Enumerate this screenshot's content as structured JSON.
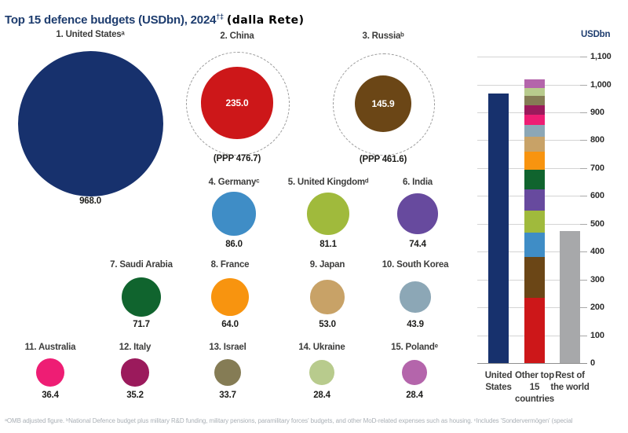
{
  "title": {
    "main": "Top 15 defence budgets (USDbn), 2024",
    "superscript": "†‡",
    "annotation": "(dalla Rete)"
  },
  "unit_label": "USDbn",
  "footnote": "ᵃOMB adjusted figure. ᵇNational Defence budget plus military R&D funding, military pensions, paramilitary forces' budgets, and other MoD-related expenses such as housing. ᶜIncludes 'Sondervermögen' (special",
  "colors": {
    "title_navy": "#1d3c6e",
    "label_gray": "#3c3c3b",
    "value_black": "#1d1d1b",
    "gridline": "#d4d4d4",
    "dashed_ring": "#9a9a9a",
    "rest_of_world_gray": "#a7a8aa"
  },
  "chart_data": [
    {
      "type": "bubble",
      "title": "Top 15 defence budgets (USDbn), 2024",
      "unit": "USDbn",
      "points": [
        {
          "rank": 1,
          "label": "1. United Statesᵃ",
          "name": "United States",
          "value": 968.0,
          "value_label": "968.0",
          "color": "#17316d"
        },
        {
          "rank": 2,
          "label": "2. China",
          "name": "China",
          "value": 235.0,
          "value_label": "235.0",
          "color": "#cd1719",
          "ppp": 476.7,
          "ppp_label": "(PPP 476.7)",
          "value_inside": true
        },
        {
          "rank": 3,
          "label": "3. Russiaᵇ",
          "name": "Russia",
          "value": 145.9,
          "value_label": "145.9",
          "color": "#6b4616",
          "ppp": 461.6,
          "ppp_label": "(PPP 461.6)",
          "value_inside": true
        },
        {
          "rank": 4,
          "label": "4. Germanyᶜ",
          "name": "Germany",
          "value": 86.0,
          "value_label": "86.0",
          "color": "#3f8dc6"
        },
        {
          "rank": 5,
          "label": "5. United Kingdomᵈ",
          "name": "United Kingdom",
          "value": 81.1,
          "value_label": "81.1",
          "color": "#a0ba3c"
        },
        {
          "rank": 6,
          "label": "6. India",
          "name": "India",
          "value": 74.4,
          "value_label": "74.4",
          "color": "#674a9e"
        },
        {
          "rank": 7,
          "label": "7. Saudi Arabia",
          "name": "Saudi Arabia",
          "value": 71.7,
          "value_label": "71.7",
          "color": "#10642e"
        },
        {
          "rank": 8,
          "label": "8. France",
          "name": "France",
          "value": 64.0,
          "value_label": "64.0",
          "color": "#f8940f"
        },
        {
          "rank": 9,
          "label": "9. Japan",
          "name": "Japan",
          "value": 53.0,
          "value_label": "53.0",
          "color": "#c8a267"
        },
        {
          "rank": 10,
          "label": "10. South Korea",
          "name": "South Korea",
          "value": 43.9,
          "value_label": "43.9",
          "color": "#8ca7b6"
        },
        {
          "rank": 11,
          "label": "11. Australia",
          "name": "Australia",
          "value": 36.4,
          "value_label": "36.4",
          "color": "#ee1d74"
        },
        {
          "rank": 12,
          "label": "12. Italy",
          "name": "Italy",
          "value": 35.2,
          "value_label": "35.2",
          "color": "#9b1a5c"
        },
        {
          "rank": 13,
          "label": "13. Israel",
          "name": "Israel",
          "value": 33.7,
          "value_label": "33.7",
          "color": "#857c55"
        },
        {
          "rank": 14,
          "label": "14. Ukraine",
          "name": "Ukraine",
          "value": 28.4,
          "value_label": "28.4",
          "color": "#b8cb8d"
        },
        {
          "rank": 15,
          "label": "15. Polandᵉ",
          "name": "Poland",
          "value": 28.4,
          "value_label": "28.4",
          "color": "#b465ab"
        }
      ]
    },
    {
      "type": "bar",
      "ylabel": "USDbn",
      "ylim": [
        0,
        1100
      ],
      "yticks": [
        "0",
        "100",
        "200",
        "300",
        "400",
        "500",
        "600",
        "700",
        "800",
        "900",
        "1,000",
        "1,100"
      ],
      "grid": true,
      "bars": [
        {
          "category": "United States",
          "total": 968.0,
          "segments": [
            {
              "name": "United States",
              "value": 968.0,
              "color": "#17316d"
            }
          ]
        },
        {
          "category": "Other top 15 countries",
          "total": 1017.1,
          "segments": [
            {
              "name": "China",
              "value": 235.0,
              "color": "#cd1719"
            },
            {
              "name": "Russia",
              "value": 145.9,
              "color": "#6b4616"
            },
            {
              "name": "Germany",
              "value": 86.0,
              "color": "#3f8dc6"
            },
            {
              "name": "United Kingdom",
              "value": 81.1,
              "color": "#a0ba3c"
            },
            {
              "name": "India",
              "value": 74.4,
              "color": "#674a9e"
            },
            {
              "name": "Saudi Arabia",
              "value": 71.7,
              "color": "#10642e"
            },
            {
              "name": "France",
              "value": 64.0,
              "color": "#f8940f"
            },
            {
              "name": "Japan",
              "value": 53.0,
              "color": "#c8a267"
            },
            {
              "name": "South Korea",
              "value": 43.9,
              "color": "#8ca7b6"
            },
            {
              "name": "Australia",
              "value": 36.4,
              "color": "#ee1d74"
            },
            {
              "name": "Italy",
              "value": 35.2,
              "color": "#9b1a5c"
            },
            {
              "name": "Israel",
              "value": 33.7,
              "color": "#857c55"
            },
            {
              "name": "Ukraine",
              "value": 28.4,
              "color": "#b8cb8d"
            },
            {
              "name": "Poland",
              "value": 28.4,
              "color": "#b465ab"
            }
          ]
        },
        {
          "category": "Rest of the world",
          "total": 474.0,
          "segments": [
            {
              "name": "Rest of the world",
              "value": 474.0,
              "color": "#a7a8aa"
            }
          ]
        }
      ]
    }
  ]
}
